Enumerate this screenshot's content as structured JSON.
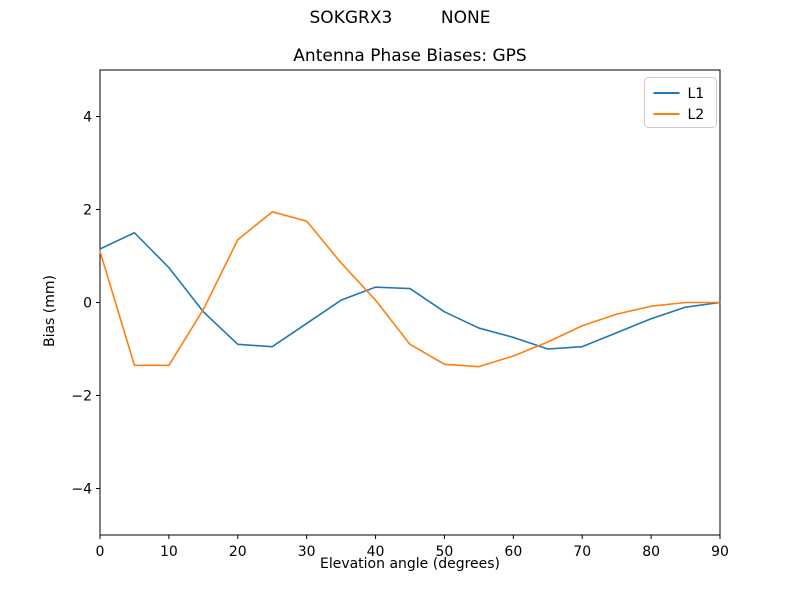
{
  "figure": {
    "suptitle": "SOKGRX3         NONE",
    "title": "Antenna Phase Biases: GPS",
    "xlabel": "Elevation angle (degrees)",
    "ylabel": "Bias (mm)"
  },
  "chart_data": {
    "type": "line",
    "suptitle": "SOKGRX3         NONE",
    "title": "Antenna Phase Biases: GPS",
    "xlabel": "Elevation angle (degrees)",
    "ylabel": "Bias (mm)",
    "xlim": [
      0,
      90
    ],
    "ylim": [
      -5,
      5
    ],
    "xticks": [
      0,
      10,
      20,
      30,
      40,
      50,
      60,
      70,
      80,
      90
    ],
    "yticks": [
      -4,
      -2,
      0,
      2,
      4
    ],
    "grid": false,
    "legend_position": "upper right",
    "x": [
      0,
      5,
      10,
      15,
      20,
      25,
      30,
      35,
      40,
      45,
      50,
      55,
      60,
      65,
      70,
      75,
      80,
      85,
      90
    ],
    "series": [
      {
        "name": "L1",
        "color": "#1f77b4",
        "values": [
          1.15,
          1.5,
          0.75,
          -0.2,
          -0.9,
          -0.95,
          -0.45,
          0.05,
          0.33,
          0.3,
          -0.2,
          -0.55,
          -0.75,
          -1.0,
          -0.95,
          -0.65,
          -0.35,
          -0.1,
          0.0
        ]
      },
      {
        "name": "L2",
        "color": "#ff7f0e",
        "values": [
          1.1,
          -1.35,
          -1.35,
          -0.15,
          1.35,
          1.95,
          1.75,
          0.85,
          0.05,
          -0.9,
          -1.33,
          -1.38,
          -1.15,
          -0.85,
          -0.5,
          -0.25,
          -0.08,
          0.0,
          0.0
        ]
      }
    ],
    "frame_color": "#000000",
    "legend_border_color": "#cccccc",
    "background_color": "#ffffff"
  }
}
